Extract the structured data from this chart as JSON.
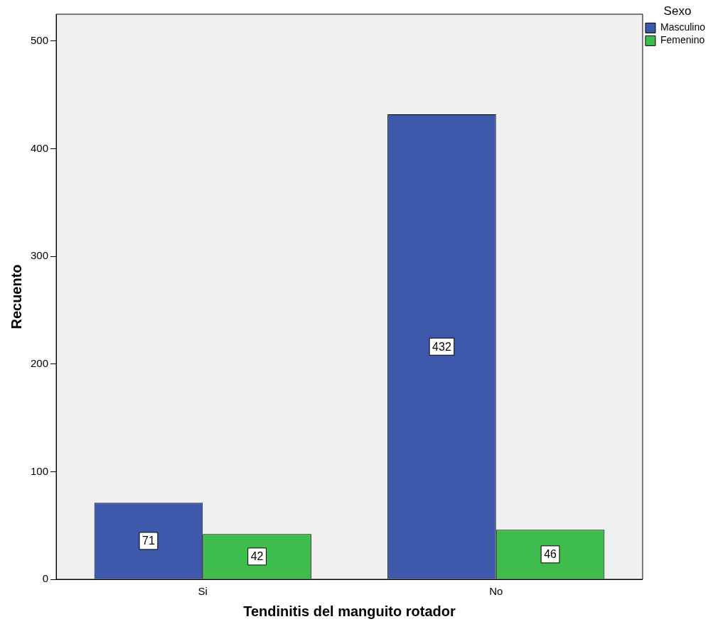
{
  "chart_data": {
    "type": "bar",
    "xlabel": "Tendinitis del manguito rotador",
    "ylabel": "Recuento",
    "legend_title": "Sexo",
    "legend": "top right",
    "categories": [
      "Si",
      "No"
    ],
    "series": [
      {
        "name": "Masculino",
        "color": "#3e58ac",
        "values": [
          71,
          432
        ]
      },
      {
        "name": "Femenino",
        "color": "#3ebd4c",
        "values": [
          42,
          46
        ]
      }
    ],
    "ylim": [
      0,
      525
    ],
    "yticks": [
      0,
      100,
      200,
      300,
      400,
      500
    ],
    "grid": false,
    "data_labels": true
  }
}
